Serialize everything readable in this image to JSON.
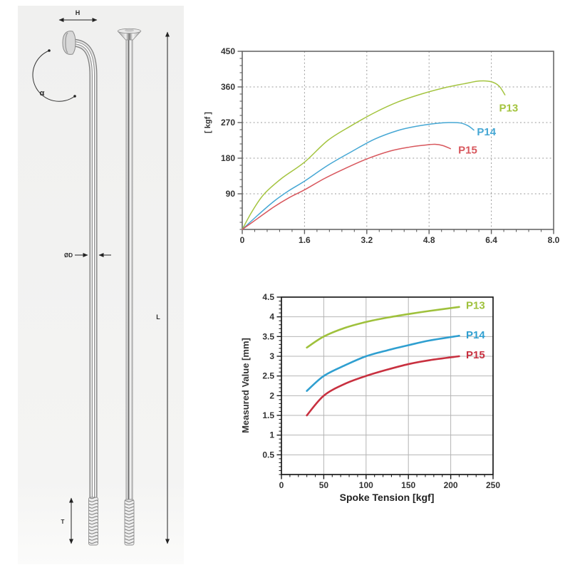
{
  "diagram": {
    "labels": {
      "h": "H",
      "alpha": "α",
      "diameter": "ØD",
      "length": "L",
      "thread": "T"
    }
  },
  "chart_data": [
    {
      "id": "load-elongation-chart",
      "type": "line",
      "title": "",
      "xlabel": "",
      "ylabel": "[ kgf ]",
      "xlim": [
        0,
        8.0
      ],
      "ylim": [
        0,
        450
      ],
      "line_width": 1.5,
      "x_ticks": {
        "values": [
          0,
          1.6,
          3.2,
          4.8,
          6.4,
          8.0
        ],
        "labels": [
          "0",
          "1.6",
          "3.2",
          "4.8",
          "6.4",
          "8.0"
        ],
        "minor_step": 0.32
      },
      "y_ticks": {
        "values": [
          90,
          180,
          270,
          360,
          450
        ],
        "labels": [
          "90",
          "180",
          "270",
          "360",
          "450"
        ],
        "minor_step": 18
      },
      "grid": {
        "style": "dashed",
        "color": "#9b9b9b",
        "x": [
          1.6,
          3.2,
          4.8,
          6.4
        ],
        "y": [
          90,
          180,
          270,
          360
        ]
      },
      "series": [
        {
          "name": "P13",
          "color": "#a4c43f",
          "x": [
            0,
            0.25,
            0.55,
            1.0,
            1.6,
            2.2,
            2.8,
            3.4,
            4.0,
            4.6,
            5.2,
            5.7,
            6.1,
            6.4,
            6.6,
            6.75
          ],
          "y": [
            0,
            45,
            88,
            128,
            170,
            225,
            262,
            295,
            322,
            342,
            358,
            368,
            375,
            373,
            362,
            340
          ],
          "label_at": [
            6.6,
            298
          ]
        },
        {
          "name": "P14",
          "color": "#45a7d4",
          "x": [
            0,
            0.4,
            0.8,
            1.2,
            1.6,
            2.2,
            2.8,
            3.4,
            4.0,
            4.5,
            5.0,
            5.3,
            5.6,
            5.8,
            5.95
          ],
          "y": [
            0,
            36,
            70,
            98,
            122,
            162,
            196,
            228,
            250,
            261,
            268,
            270,
            269,
            262,
            251
          ],
          "label_at": [
            6.03,
            238
          ]
        },
        {
          "name": "P15",
          "color": "#d8575d",
          "x": [
            0,
            0.4,
            0.8,
            1.2,
            1.6,
            2.1,
            2.6,
            3.2,
            3.8,
            4.3,
            4.7,
            4.95,
            5.15,
            5.35
          ],
          "y": [
            0,
            28,
            56,
            80,
            100,
            128,
            152,
            178,
            198,
            208,
            213,
            215,
            212,
            204
          ],
          "label_at": [
            5.55,
            192
          ]
        }
      ]
    },
    {
      "id": "measured-value-chart",
      "type": "line",
      "title": "",
      "xlabel": "Spoke Tension [kgf]",
      "ylabel": "Measured Value [mm]",
      "xlim": [
        0,
        250
      ],
      "ylim": [
        0,
        4.5
      ],
      "line_width": 2.6,
      "x_ticks": {
        "values": [
          0,
          50,
          100,
          150,
          200,
          250
        ],
        "labels": [
          "0",
          "50",
          "100",
          "150",
          "200",
          "250"
        ],
        "minor_step": 10
      },
      "y_ticks": {
        "values": [
          0.5,
          1,
          1.5,
          2,
          2.5,
          3,
          3.5,
          4,
          4.5
        ],
        "labels": [
          "0.5",
          "1",
          "1.5",
          "2",
          "2.5",
          "3",
          "3.5",
          "4",
          "4.5"
        ],
        "minor_step": 0.1
      },
      "grid": {
        "style": "solid",
        "color": "#b4b4b4",
        "x": [
          50,
          100,
          150,
          200
        ],
        "y": [
          0.5,
          1,
          1.5,
          2,
          2.5,
          3,
          3.5,
          4
        ]
      },
      "series": [
        {
          "name": "P13",
          "color": "#9fc13c",
          "x": [
            30,
            50,
            75,
            100,
            125,
            150,
            175,
            210
          ],
          "y": [
            3.22,
            3.5,
            3.72,
            3.87,
            3.98,
            4.07,
            4.15,
            4.25
          ],
          "label_at": [
            218,
            4.2
          ]
        },
        {
          "name": "P14",
          "color": "#2f9fd0",
          "x": [
            30,
            50,
            75,
            100,
            125,
            150,
            175,
            210
          ],
          "y": [
            2.12,
            2.5,
            2.77,
            3.0,
            3.15,
            3.28,
            3.4,
            3.52
          ],
          "label_at": [
            218,
            3.45
          ]
        },
        {
          "name": "P15",
          "color": "#c8303f",
          "x": [
            30,
            50,
            75,
            100,
            125,
            150,
            175,
            210
          ],
          "y": [
            1.5,
            2.0,
            2.3,
            2.5,
            2.66,
            2.8,
            2.9,
            3.0
          ],
          "label_at": [
            218,
            2.95
          ]
        }
      ]
    }
  ]
}
